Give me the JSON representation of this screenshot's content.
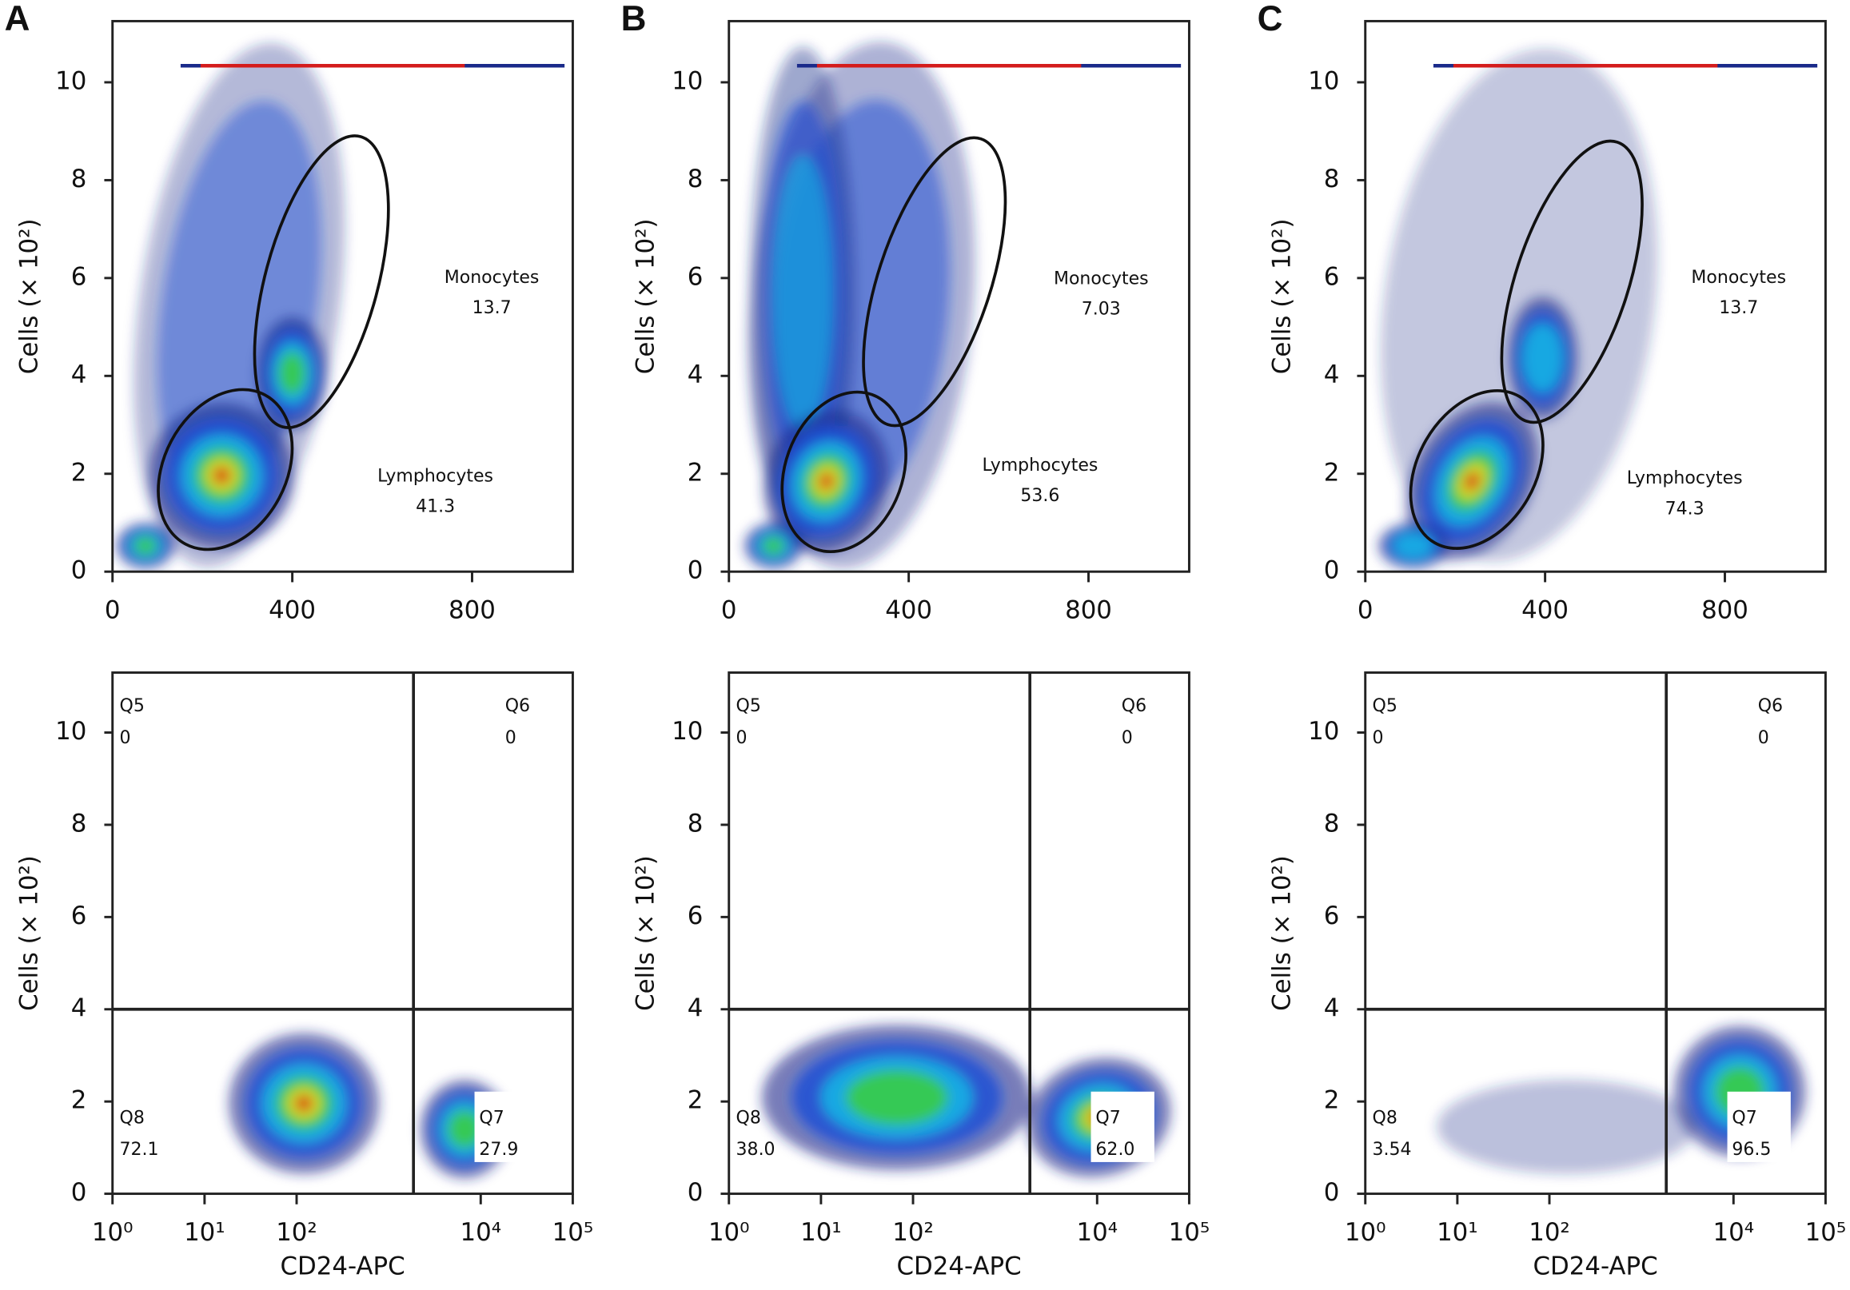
{
  "chart_data": [
    {
      "type": "density",
      "panel": "A",
      "ylabel": "Cells (× 10²)",
      "xlim": [
        0,
        1024
      ],
      "ylim": [
        0,
        11.25
      ],
      "xticks": [
        0,
        400,
        800
      ],
      "yticks": [
        0,
        2,
        4,
        6,
        8,
        10
      ],
      "gates": [
        {
          "name": "Monocytes",
          "value": 13.7
        },
        {
          "name": "Lymphocytes",
          "value": 41.3
        }
      ]
    },
    {
      "type": "density",
      "panel": "B",
      "ylabel": "Cells (× 10²)",
      "xlim": [
        0,
        1024
      ],
      "ylim": [
        0,
        11.25
      ],
      "xticks": [
        0,
        400,
        800
      ],
      "yticks": [
        0,
        2,
        4,
        6,
        8,
        10
      ],
      "gates": [
        {
          "name": "Monocytes",
          "value": 7.03
        },
        {
          "name": "Lymphocytes",
          "value": 53.6
        }
      ]
    },
    {
      "type": "density",
      "panel": "C",
      "ylabel": "Cells (× 10²)",
      "xlim": [
        0,
        1024
      ],
      "ylim": [
        0,
        11.25
      ],
      "xticks": [
        0,
        400,
        800
      ],
      "yticks": [
        0,
        2,
        4,
        6,
        8,
        10
      ],
      "gates": [
        {
          "name": "Monocytes",
          "value": 13.7
        },
        {
          "name": "Lymphocytes",
          "value": 74.3
        }
      ]
    },
    {
      "type": "quadrant",
      "ylabel": "Cells (× 10²)",
      "xlabel": "CD24-APC",
      "log_x": true,
      "xlim": [
        1,
        100000
      ],
      "ylim": [
        0,
        11.3
      ],
      "xticks": [
        {
          "value": 1,
          "label": "10⁰"
        },
        {
          "value": 10,
          "label": "10¹"
        },
        {
          "value": 100,
          "label": "10²"
        },
        {
          "value": 10000,
          "label": "10⁴"
        },
        {
          "value": 100000,
          "label": "10⁵"
        }
      ],
      "yticks": [
        0,
        2,
        4,
        6,
        8,
        10
      ],
      "quadrant_x": 1860,
      "quadrant_y": 4,
      "quadrants": [
        {
          "name": "Q5",
          "value": 0
        },
        {
          "name": "Q6",
          "value": 0
        },
        {
          "name": "Q7",
          "value": 27.9
        },
        {
          "name": "Q8",
          "value": 72.1
        }
      ]
    },
    {
      "type": "quadrant",
      "ylabel": "Cells (× 10²)",
      "xlabel": "CD24-APC",
      "log_x": true,
      "xlim": [
        1,
        100000
      ],
      "ylim": [
        0,
        11.3
      ],
      "xticks": [
        {
          "value": 1,
          "label": "10⁰"
        },
        {
          "value": 10,
          "label": "10¹"
        },
        {
          "value": 100,
          "label": "10²"
        },
        {
          "value": 10000,
          "label": "10⁴"
        },
        {
          "value": 100000,
          "label": "10⁵"
        }
      ],
      "yticks": [
        0,
        2,
        4,
        6,
        8,
        10
      ],
      "quadrant_x": 1860,
      "quadrant_y": 4,
      "quadrants": [
        {
          "name": "Q5",
          "value": 0
        },
        {
          "name": "Q6",
          "value": 0
        },
        {
          "name": "Q7",
          "value": 62,
          "value_label": "62.0"
        },
        {
          "name": "Q8",
          "value": 38,
          "value_label": "38.0"
        }
      ]
    },
    {
      "type": "quadrant",
      "ylabel": "Cells (× 10²)",
      "xlabel": "CD24-APC",
      "log_x": true,
      "xlim": [
        1,
        100000
      ],
      "ylim": [
        0,
        11.3
      ],
      "xticks": [
        {
          "value": 1,
          "label": "10⁰"
        },
        {
          "value": 10,
          "label": "10¹"
        },
        {
          "value": 100,
          "label": "10²"
        },
        {
          "value": 10000,
          "label": "10⁴"
        },
        {
          "value": 100000,
          "label": "10⁵"
        }
      ],
      "yticks": [
        0,
        2,
        4,
        6,
        8,
        10
      ],
      "quadrant_x": 1860,
      "quadrant_y": 4,
      "quadrants": [
        {
          "name": "Q5",
          "value": 0
        },
        {
          "name": "Q6",
          "value": 0
        },
        {
          "name": "Q7",
          "value": 96.5
        },
        {
          "name": "Q8",
          "value": 3.54
        }
      ]
    }
  ]
}
